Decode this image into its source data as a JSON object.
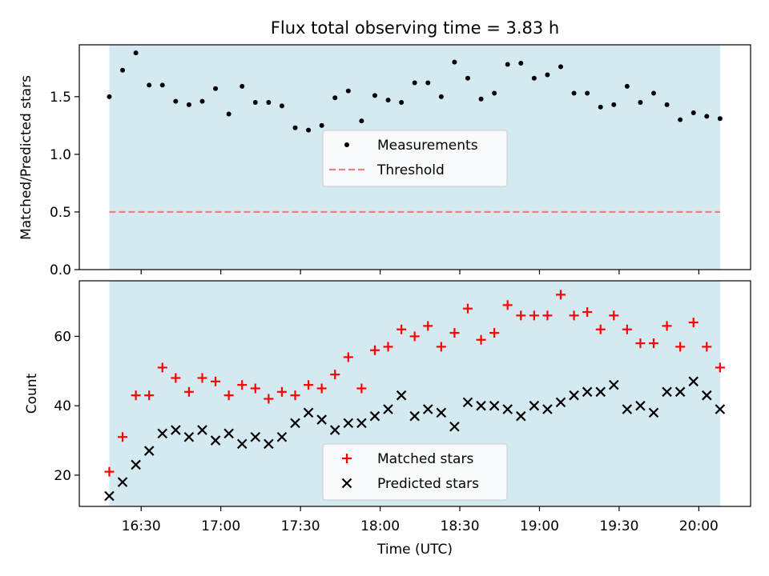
{
  "title": "Flux total observing time = 3.83 h",
  "xlabel": "Time (UTC)",
  "x_ticks": [
    {
      "min": 990,
      "label": "16:30"
    },
    {
      "min": 1020,
      "label": "17:00"
    },
    {
      "min": 1050,
      "label": "17:30"
    },
    {
      "min": 1080,
      "label": "18:00"
    },
    {
      "min": 1110,
      "label": "18:30"
    },
    {
      "min": 1140,
      "label": "19:00"
    },
    {
      "min": 1170,
      "label": "19:30"
    },
    {
      "min": 1200,
      "label": "20:00"
    }
  ],
  "colors": {
    "band": "#d4eaf0",
    "threshold": "#f08080",
    "matched": "#ff0000",
    "predicted": "#000000",
    "measurements": "#000000"
  },
  "chart_data": [
    {
      "type": "scatter",
      "ylabel": "Matched/Predicted stars",
      "ylim": [
        0,
        1.95
      ],
      "y_ticks": [
        0.0,
        0.5,
        1.0,
        1.5
      ],
      "y_tick_labels": [
        "0.0",
        "0.5",
        "1.0",
        "1.5"
      ],
      "legend_position": "center",
      "observing_window_min": [
        978,
        1208
      ],
      "threshold": {
        "name": "Threshold",
        "value": 0.5
      },
      "series": [
        {
          "name": "Measurements",
          "x_min": [
            978,
            983,
            988,
            993,
            998,
            1003,
            1008,
            1013,
            1018,
            1023,
            1028,
            1033,
            1038,
            1043,
            1048,
            1053,
            1058,
            1063,
            1068,
            1073,
            1078,
            1083,
            1088,
            1093,
            1098,
            1103,
            1108,
            1113,
            1118,
            1123,
            1128,
            1133,
            1138,
            1143,
            1148,
            1153,
            1158,
            1163,
            1168,
            1173,
            1178,
            1183,
            1188,
            1193,
            1198,
            1203,
            1208
          ],
          "y": [
            1.5,
            1.73,
            1.88,
            1.6,
            1.6,
            1.46,
            1.43,
            1.46,
            1.57,
            1.35,
            1.59,
            1.45,
            1.45,
            1.42,
            1.23,
            1.21,
            1.25,
            1.49,
            1.55,
            1.29,
            1.51,
            1.47,
            1.45,
            1.62,
            1.62,
            1.5,
            1.8,
            1.66,
            1.48,
            1.53,
            1.78,
            1.79,
            1.66,
            1.69,
            1.76,
            1.53,
            1.53,
            1.41,
            1.43,
            1.59,
            1.45,
            1.53,
            1.43,
            1.3,
            1.36,
            1.33,
            1.31
          ]
        }
      ]
    },
    {
      "type": "scatter",
      "ylabel": "Count",
      "ylim": [
        11,
        76
      ],
      "y_ticks": [
        20,
        40,
        60
      ],
      "y_tick_labels": [
        "20",
        "40",
        "60"
      ],
      "legend_position": "lower center",
      "series": [
        {
          "name": "Matched stars",
          "marker": "plus",
          "x_min": [
            978,
            983,
            988,
            993,
            998,
            1003,
            1008,
            1013,
            1018,
            1023,
            1028,
            1033,
            1038,
            1043,
            1048,
            1053,
            1058,
            1063,
            1068,
            1073,
            1078,
            1083,
            1088,
            1093,
            1098,
            1103,
            1108,
            1113,
            1118,
            1123,
            1128,
            1133,
            1138,
            1143,
            1148,
            1153,
            1158,
            1163,
            1168,
            1173,
            1178,
            1183,
            1188,
            1193,
            1198,
            1203,
            1208
          ],
          "y": [
            21,
            31,
            43,
            43,
            51,
            48,
            44,
            48,
            47,
            43,
            46,
            45,
            42,
            44,
            43,
            46,
            45,
            49,
            54,
            45,
            56,
            57,
            62,
            60,
            63,
            57,
            61,
            68,
            59,
            61,
            69,
            66,
            66,
            66,
            72,
            66,
            67,
            62,
            66,
            62,
            58,
            58,
            63,
            57,
            64,
            57,
            51
          ]
        },
        {
          "name": "Predicted stars",
          "marker": "x",
          "x_min": [
            978,
            983,
            988,
            993,
            998,
            1003,
            1008,
            1013,
            1018,
            1023,
            1028,
            1033,
            1038,
            1043,
            1048,
            1053,
            1058,
            1063,
            1068,
            1073,
            1078,
            1083,
            1088,
            1093,
            1098,
            1103,
            1108,
            1113,
            1118,
            1123,
            1128,
            1133,
            1138,
            1143,
            1148,
            1153,
            1158,
            1163,
            1168,
            1173,
            1178,
            1183,
            1188,
            1193,
            1198,
            1203,
            1208
          ],
          "y": [
            14,
            18,
            23,
            27,
            32,
            33,
            31,
            33,
            30,
            32,
            29,
            31,
            29,
            31,
            35,
            38,
            36,
            33,
            35,
            35,
            37,
            39,
            43,
            37,
            39,
            38,
            34,
            41,
            40,
            40,
            39,
            37,
            40,
            39,
            41,
            43,
            44,
            44,
            46,
            39,
            40,
            38,
            44,
            44,
            47,
            43,
            39
          ]
        }
      ]
    }
  ]
}
